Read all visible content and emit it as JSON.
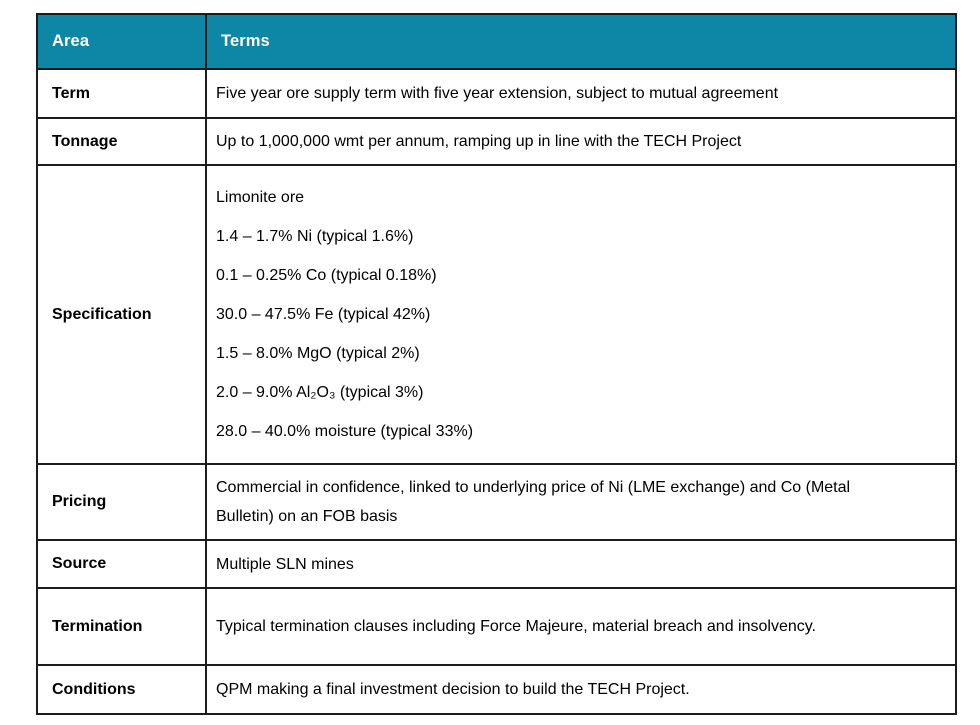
{
  "theme": {
    "header_bg": "#0e86a6",
    "header_text": "#ffffff",
    "border_color": "#1c1c1c",
    "body_text": "#000000"
  },
  "table": {
    "header": {
      "area": "Area",
      "terms": "Terms"
    },
    "rows": [
      {
        "area": "Term",
        "terms": [
          "Five year ore supply term with five year extension, subject to mutual agreement"
        ]
      },
      {
        "area": "Tonnage",
        "terms": [
          "Up to 1,000,000 wmt per annum, ramping up in line with the TECH Project"
        ]
      },
      {
        "area": "Specification",
        "terms": [
          "Limonite ore",
          "1.4 – 1.7% Ni (typical 1.6%)",
          "0.1 – 0.25% Co (typical 0.18%)",
          "30.0 – 47.5% Fe (typical 42%)",
          "1.5 – 8.0% MgO (typical 2%)",
          "2.0 – 9.0% Al₂O₃ (typical 3%)",
          "28.0 – 40.0% moisture (typical 33%)"
        ]
      },
      {
        "area": "Pricing",
        "terms": [
          "Commercial in confidence, linked to underlying price of Ni (LME exchange) and Co (Metal Bulletin) on an FOB basis"
        ]
      },
      {
        "area": "Source",
        "terms": [
          "Multiple SLN mines"
        ]
      },
      {
        "area": "Termination",
        "terms": [
          "Typical termination clauses including Force Majeure, material breach and insolvency."
        ]
      },
      {
        "area": "Conditions",
        "terms": [
          "QPM making a final investment decision to build the TECH Project."
        ]
      }
    ]
  }
}
